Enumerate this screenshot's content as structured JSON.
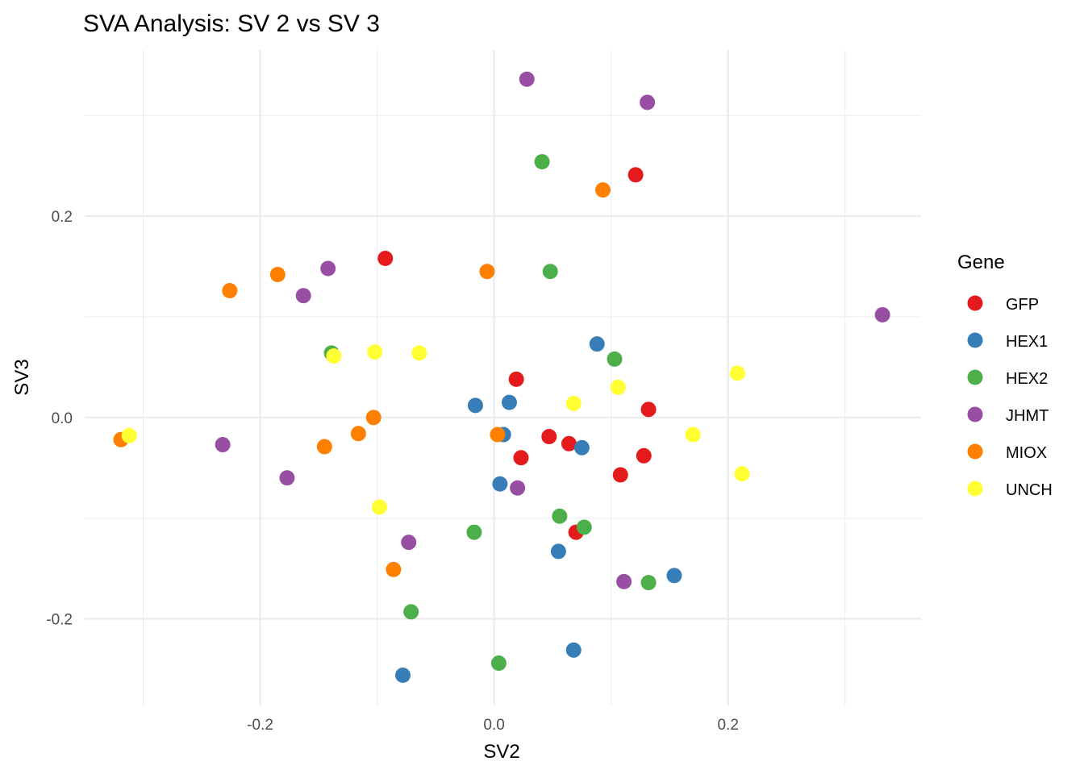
{
  "chart_data": {
    "type": "scatter",
    "title": "SVA Analysis: SV 2  vs SV 3",
    "xlabel": "SV2",
    "ylabel": "SV3",
    "xlim": [
      -0.35,
      0.365
    ],
    "ylim": [
      -0.286,
      0.365
    ],
    "x_major_ticks": [
      -0.2,
      0.0,
      0.2
    ],
    "x_tick_labels": [
      "-0.2",
      "0.0",
      "0.2"
    ],
    "y_major_ticks": [
      -0.2,
      0.0,
      0.2
    ],
    "y_tick_labels": [
      "-0.2",
      "0.0",
      "0.2"
    ],
    "x_minor_ticks": [
      -0.3,
      -0.1,
      0.1,
      0.3
    ],
    "y_minor_ticks": [
      -0.1,
      0.1,
      0.3
    ],
    "grid": true,
    "legend": {
      "title": "Gene",
      "placement": "right"
    },
    "series": [
      {
        "name": "GFP",
        "color": "#E41A1C",
        "points": [
          [
            -0.093,
            0.158
          ],
          [
            0.121,
            0.241
          ],
          [
            0.019,
            0.038
          ],
          [
            0.047,
            -0.019
          ],
          [
            0.064,
            -0.026
          ],
          [
            0.023,
            -0.04
          ],
          [
            0.132,
            0.008
          ],
          [
            0.128,
            -0.038
          ],
          [
            0.108,
            -0.057
          ],
          [
            0.07,
            -0.114
          ]
        ]
      },
      {
        "name": "HEX1",
        "color": "#377EB8",
        "points": [
          [
            0.088,
            0.073
          ],
          [
            -0.016,
            0.012
          ],
          [
            0.013,
            0.015
          ],
          [
            0.008,
            -0.017
          ],
          [
            0.075,
            -0.03
          ],
          [
            0.005,
            -0.066
          ],
          [
            0.055,
            -0.133
          ],
          [
            0.154,
            -0.157
          ],
          [
            0.068,
            -0.231
          ],
          [
            -0.078,
            -0.256
          ]
        ]
      },
      {
        "name": "HEX2",
        "color": "#4DAF4A",
        "points": [
          [
            0.041,
            0.254
          ],
          [
            0.048,
            0.145
          ],
          [
            -0.139,
            0.064
          ],
          [
            0.103,
            0.058
          ],
          [
            0.056,
            -0.098
          ],
          [
            0.077,
            -0.109
          ],
          [
            -0.017,
            -0.114
          ],
          [
            0.132,
            -0.164
          ],
          [
            -0.071,
            -0.193
          ],
          [
            0.004,
            -0.244
          ]
        ]
      },
      {
        "name": "JHMT",
        "color": "#984EA3",
        "points": [
          [
            0.028,
            0.336
          ],
          [
            0.131,
            0.313
          ],
          [
            -0.142,
            0.148
          ],
          [
            -0.163,
            0.121
          ],
          [
            0.332,
            0.102
          ],
          [
            -0.232,
            -0.027
          ],
          [
            -0.177,
            -0.06
          ],
          [
            0.02,
            -0.07
          ],
          [
            -0.073,
            -0.124
          ],
          [
            0.111,
            -0.163
          ]
        ]
      },
      {
        "name": "MIOX",
        "color": "#FF7F00",
        "points": [
          [
            0.093,
            0.226
          ],
          [
            -0.006,
            0.145
          ],
          [
            -0.185,
            0.142
          ],
          [
            -0.226,
            0.126
          ],
          [
            -0.103,
            0.0
          ],
          [
            -0.116,
            -0.016
          ],
          [
            -0.145,
            -0.029
          ],
          [
            0.003,
            -0.017
          ],
          [
            -0.319,
            -0.022
          ],
          [
            -0.086,
            -0.151
          ]
        ]
      },
      {
        "name": "UNCH",
        "color": "#FFFF33",
        "points": [
          [
            -0.102,
            0.065
          ],
          [
            -0.064,
            0.064
          ],
          [
            -0.137,
            0.061
          ],
          [
            0.068,
            0.014
          ],
          [
            0.106,
            0.03
          ],
          [
            0.208,
            0.044
          ],
          [
            0.17,
            -0.017
          ],
          [
            0.212,
            -0.056
          ],
          [
            -0.098,
            -0.089
          ],
          [
            -0.312,
            -0.018
          ]
        ]
      }
    ]
  }
}
